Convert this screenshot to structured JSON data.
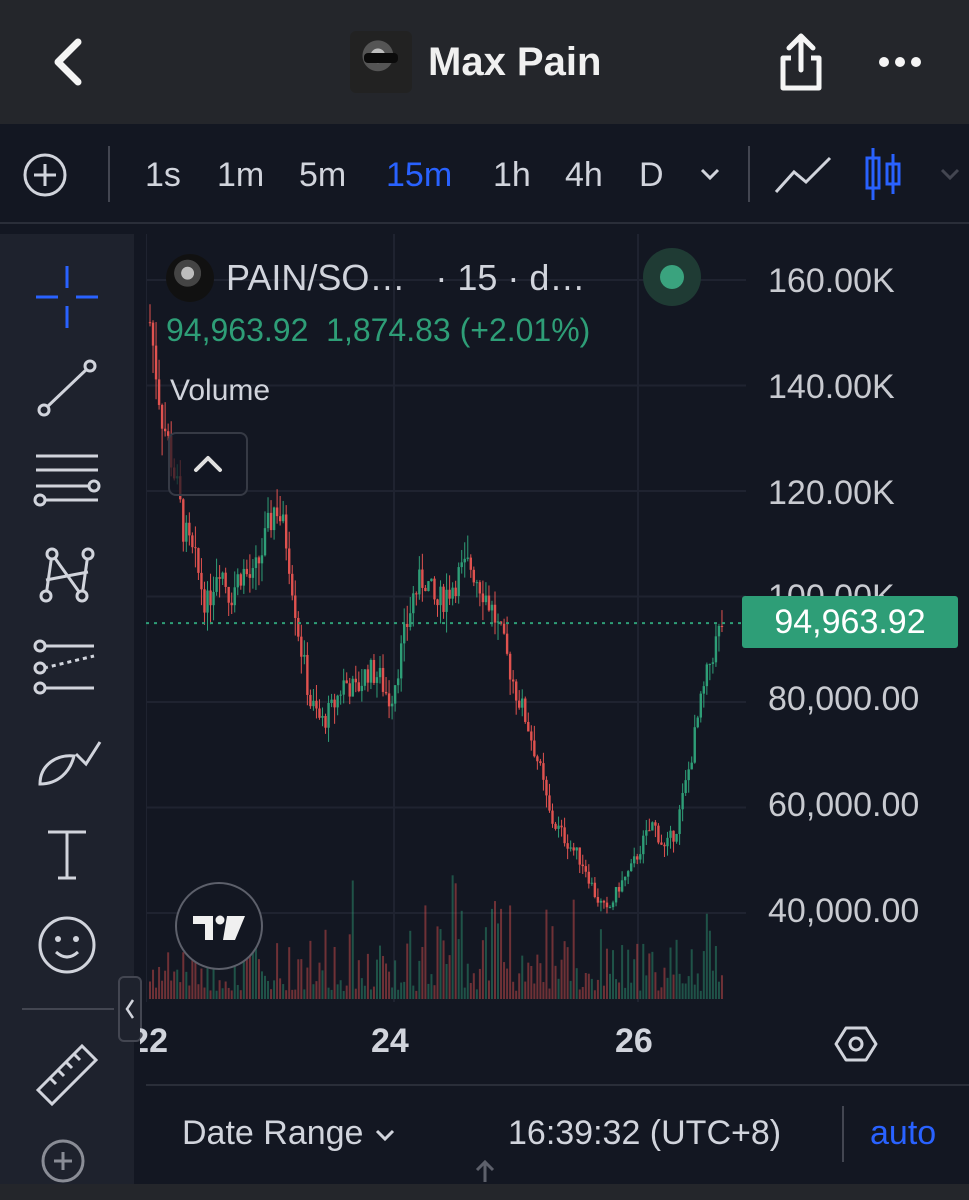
{
  "header": {
    "title": "Max Pain"
  },
  "toolbar": {
    "intervals": [
      "1s",
      "1m",
      "5m",
      "15m",
      "1h",
      "4h",
      "D"
    ],
    "active_interval": "15m",
    "accent": "#2962ff"
  },
  "legend": {
    "symbol": "PAIN/SO…",
    "interval_exchange": "· 15 · d…",
    "last": "94,963.92",
    "change": "1,874.83 (+2.01%)",
    "volume_label": "Volume",
    "status_color": "#3aa37e"
  },
  "chart_data": {
    "type": "candlestick",
    "y_axis_labels": [
      "160.00K",
      "140.00K",
      "120.00K",
      "100.00K",
      "80,000.00",
      "60,000.00",
      "40,000.00"
    ],
    "x_axis_labels": [
      "22",
      "24",
      "26"
    ],
    "ylim": [
      30000,
      165000
    ],
    "last_price": 94963.92,
    "last_price_label": "94,963.92",
    "up_color": "#2e9e77",
    "down_color": "#e0524f",
    "close_path": [
      {
        "t": 0.0,
        "p": 152000
      },
      {
        "t": 0.02,
        "p": 135000
      },
      {
        "t": 0.04,
        "p": 125000
      },
      {
        "t": 0.06,
        "p": 112000
      },
      {
        "t": 0.08,
        "p": 106000
      },
      {
        "t": 0.1,
        "p": 98000
      },
      {
        "t": 0.12,
        "p": 107000
      },
      {
        "t": 0.14,
        "p": 100000
      },
      {
        "t": 0.16,
        "p": 105000
      },
      {
        "t": 0.18,
        "p": 103000
      },
      {
        "t": 0.2,
        "p": 110000
      },
      {
        "t": 0.22,
        "p": 118000
      },
      {
        "t": 0.24,
        "p": 110000
      },
      {
        "t": 0.26,
        "p": 93000
      },
      {
        "t": 0.28,
        "p": 80000
      },
      {
        "t": 0.3,
        "p": 76000
      },
      {
        "t": 0.32,
        "p": 79000
      },
      {
        "t": 0.34,
        "p": 84000
      },
      {
        "t": 0.36,
        "p": 82000
      },
      {
        "t": 0.38,
        "p": 86000
      },
      {
        "t": 0.4,
        "p": 85000
      },
      {
        "t": 0.42,
        "p": 80000
      },
      {
        "t": 0.44,
        "p": 90000
      },
      {
        "t": 0.46,
        "p": 100000
      },
      {
        "t": 0.48,
        "p": 104000
      },
      {
        "t": 0.5,
        "p": 98000
      },
      {
        "t": 0.52,
        "p": 101000
      },
      {
        "t": 0.54,
        "p": 104000
      },
      {
        "t": 0.56,
        "p": 106000
      },
      {
        "t": 0.58,
        "p": 102000
      },
      {
        "t": 0.6,
        "p": 97000
      },
      {
        "t": 0.62,
        "p": 90000
      },
      {
        "t": 0.64,
        "p": 82000
      },
      {
        "t": 0.66,
        "p": 76000
      },
      {
        "t": 0.68,
        "p": 68000
      },
      {
        "t": 0.7,
        "p": 58000
      },
      {
        "t": 0.72,
        "p": 55000
      },
      {
        "t": 0.74,
        "p": 52000
      },
      {
        "t": 0.76,
        "p": 49000
      },
      {
        "t": 0.78,
        "p": 43000
      },
      {
        "t": 0.8,
        "p": 40000
      },
      {
        "t": 0.82,
        "p": 45000
      },
      {
        "t": 0.84,
        "p": 48000
      },
      {
        "t": 0.86,
        "p": 53000
      },
      {
        "t": 0.88,
        "p": 57000
      },
      {
        "t": 0.9,
        "p": 52000
      },
      {
        "t": 0.92,
        "p": 56000
      },
      {
        "t": 0.94,
        "p": 66000
      },
      {
        "t": 0.96,
        "p": 78000
      },
      {
        "t": 0.98,
        "p": 88000
      },
      {
        "t": 1.0,
        "p": 94964
      }
    ]
  },
  "bottom": {
    "date_range": "Date Range",
    "time": "16:39:32 (UTC+8)",
    "auto": "auto"
  }
}
